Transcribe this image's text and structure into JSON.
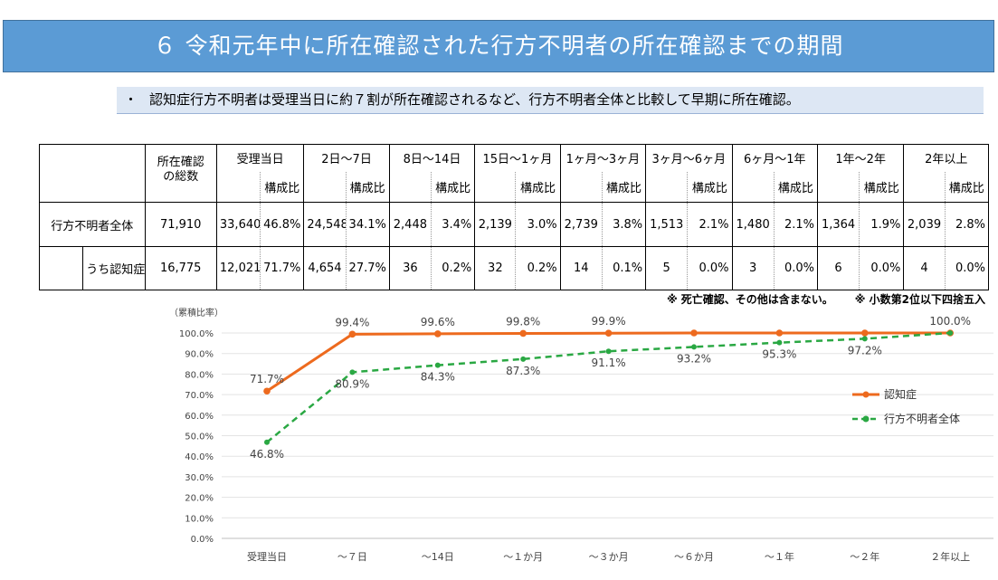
{
  "title": "６ 令和元年中に所在確認された行方不明者の所在確認までの期間",
  "summary": {
    "bullet": "・",
    "text": "認知症行方不明者は受理当日に約７割が所在確認されるなど、行方不明者全体と比較して早期に所在確認。"
  },
  "table": {
    "total_header": "所在確認\nの総数",
    "ratio_header": "構成比",
    "periods": [
      "受理当日",
      "2日～7日",
      "8日～14日",
      "15日～1ヶ月",
      "1ヶ月～3ヶ月",
      "3ヶ月～6ヶ月",
      "6ヶ月～1年",
      "1年～2年",
      "2年以上"
    ],
    "rows": [
      {
        "label": "行方不明者全体",
        "total": "71,910",
        "cells": [
          [
            "33,640",
            "46.8%"
          ],
          [
            "24,548",
            "34.1%"
          ],
          [
            "2,448",
            "3.4%"
          ],
          [
            "2,139",
            "3.0%"
          ],
          [
            "2,739",
            "3.8%"
          ],
          [
            "1,513",
            "2.1%"
          ],
          [
            "1,480",
            "2.1%"
          ],
          [
            "1,364",
            "1.9%"
          ],
          [
            "2,039",
            "2.8%"
          ]
        ]
      },
      {
        "label": "うち認知症",
        "total": "16,775",
        "cells": [
          [
            "12,021",
            "71.7%"
          ],
          [
            "4,654",
            "27.7%"
          ],
          [
            "36",
            "0.2%"
          ],
          [
            "32",
            "0.2%"
          ],
          [
            "14",
            "0.1%"
          ],
          [
            "5",
            "0.0%"
          ],
          [
            "3",
            "0.0%"
          ],
          [
            "6",
            "0.0%"
          ],
          [
            "4",
            "0.0%"
          ]
        ]
      }
    ]
  },
  "notes": [
    "※ 死亡確認、その他は含まない。",
    "※ 小数第2位以下四捨五入"
  ],
  "chart_data": {
    "type": "line",
    "ylabel": "（累積比率）",
    "categories": [
      "受理当日",
      "～７日",
      "～14日",
      "～１か月",
      "～３か月",
      "～６か月",
      "～１年",
      "～２年",
      "２年以上"
    ],
    "ylim": [
      0,
      100
    ],
    "yticks": [
      "0.0%",
      "10.0%",
      "20.0%",
      "30.0%",
      "40.0%",
      "50.0%",
      "60.0%",
      "70.0%",
      "80.0%",
      "90.0%",
      "100.0%"
    ],
    "grid": true,
    "legend": "right",
    "series": [
      {
        "name": "認知症",
        "color": "#ed6a1e",
        "dashed": false,
        "values": [
          71.7,
          99.4,
          99.6,
          99.8,
          99.9,
          100.0,
          100.0,
          100.0,
          100.0
        ],
        "labels": [
          "71.7%",
          "99.4%",
          "99.6%",
          "99.8%",
          "99.9%",
          "",
          "",
          "",
          "100.0%"
        ]
      },
      {
        "name": "行方不明者全体",
        "color": "#2aa843",
        "dashed": true,
        "values": [
          46.8,
          80.9,
          84.3,
          87.3,
          91.1,
          93.2,
          95.3,
          97.2,
          100.0
        ],
        "labels": [
          "46.8%",
          "80.9%",
          "84.3%",
          "87.3%",
          "91.1%",
          "93.2%",
          "95.3%",
          "97.2%",
          ""
        ]
      }
    ]
  }
}
